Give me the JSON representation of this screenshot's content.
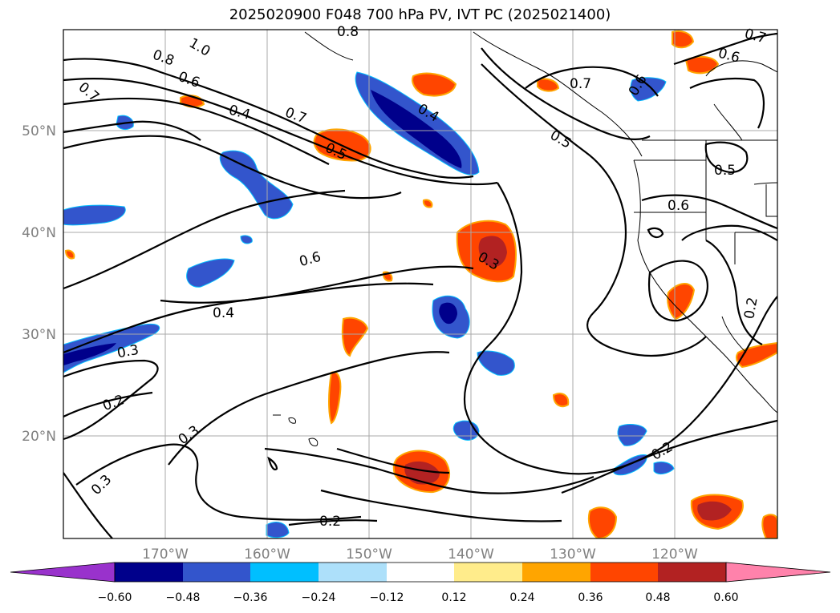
{
  "title": "2025020900 F048 700 hPa PV, IVT PC (2025021400)",
  "map": {
    "lon_labels": [
      "170°W",
      "160°W",
      "150°W",
      "140°W",
      "130°W",
      "120°W"
    ],
    "lat_labels": [
      "50°N",
      "40°N",
      "30°N",
      "20°N"
    ],
    "contour_labels": [
      "0.8",
      "1.0",
      "0.6",
      "0.7",
      "0.4",
      "0.7",
      "0.5",
      "0.4",
      "0.8",
      "0.7",
      "0.5",
      "0.6",
      "0.7",
      "0.6",
      "0.5",
      "0.6",
      "0.6",
      "0.3",
      "0.4",
      "0.3",
      "0.2",
      "0.3",
      "0.3",
      "0.2",
      "0.2",
      "0.2"
    ]
  },
  "colorbar": {
    "ticks": [
      "−0.60",
      "−0.48",
      "−0.36",
      "−0.24",
      "−0.12",
      "0.12",
      "0.24",
      "0.36",
      "0.48",
      "0.60"
    ],
    "colors": [
      "#9932CC",
      "#00008B",
      "#3355CC",
      "#00BFFF",
      "#ADE0FA",
      "#FFFFFF",
      "#FFEC8B",
      "#FFA500",
      "#FF4500",
      "#B22222",
      "#FF82AB"
    ]
  },
  "colors": {
    "grid": "#a9a9a9",
    "coast": "#000000",
    "contour": "#000000"
  }
}
